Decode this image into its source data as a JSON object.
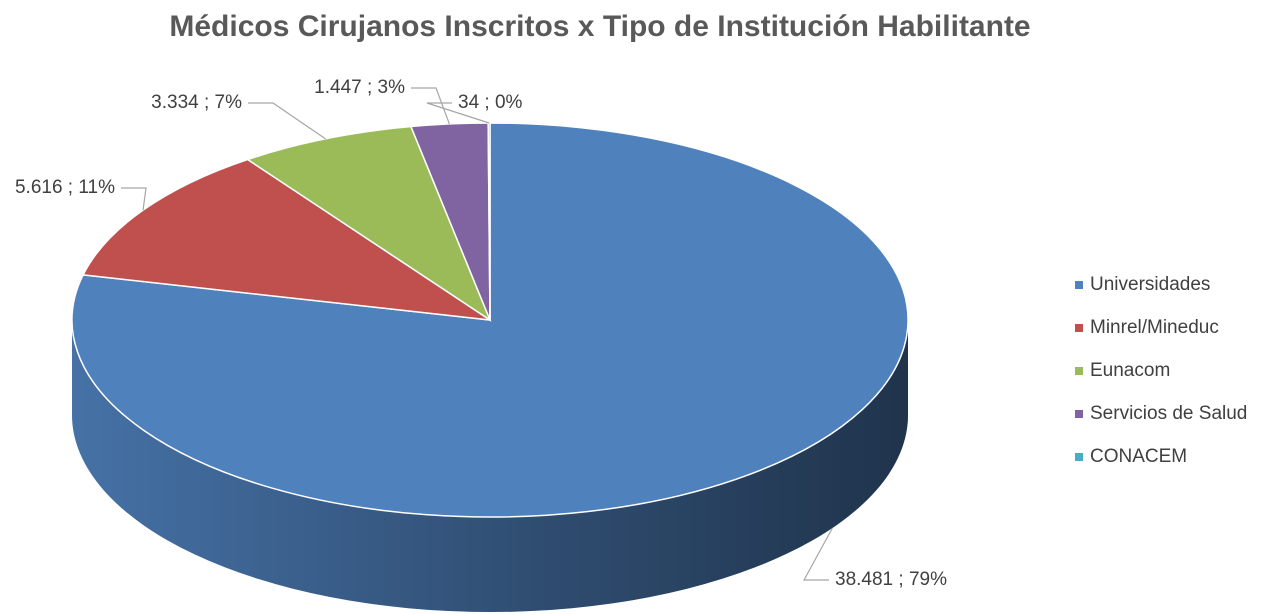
{
  "chart_data": {
    "type": "pie",
    "title": "Médicos Cirujanos Inscritos x Tipo de Institución Habilitante",
    "categories": [
      "Universidades",
      "Minrel/Mineduc",
      "Eunacom",
      "Servicios de Salud",
      "CONACEM"
    ],
    "values": [
      38481,
      5616,
      3334,
      1447,
      34
    ],
    "value_labels": [
      "38.481 ; 79%",
      "5.616 ; 11%",
      "3.334 ; 7%",
      "1.447 ; 3%",
      "34 ; 0%"
    ],
    "colors": [
      "#4f81bd",
      "#c0504d",
      "#9bbb59",
      "#8064a2",
      "#4bacc6"
    ],
    "legend": "right"
  }
}
